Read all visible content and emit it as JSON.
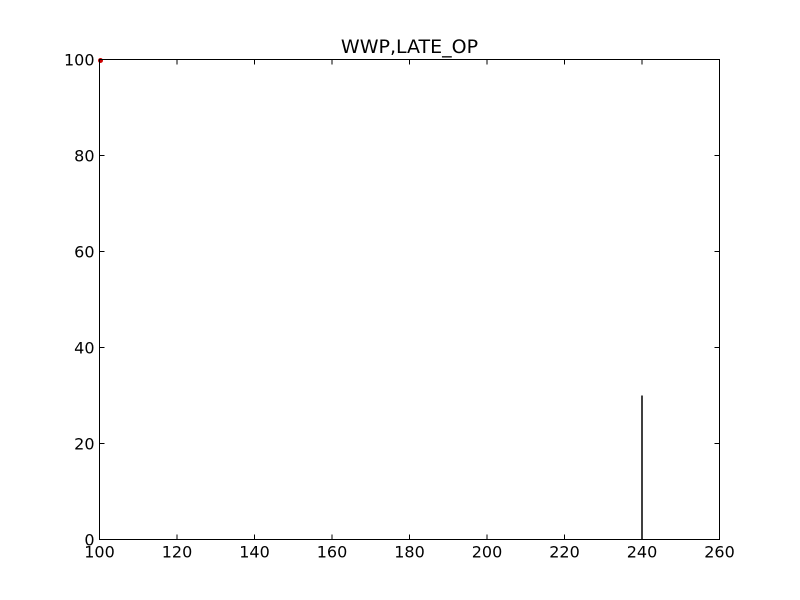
{
  "chart_data": {
    "type": "line",
    "title": "WWP,LATE_OP",
    "xlabel": "",
    "ylabel": "",
    "xlim": [
      100,
      260
    ],
    "ylim": [
      0,
      100
    ],
    "x_ticks": [
      100,
      120,
      140,
      160,
      180,
      200,
      220,
      240,
      260
    ],
    "y_ticks": [
      0,
      20,
      40,
      60,
      80,
      100
    ],
    "x_tick_labels": [
      "100",
      "120",
      "140",
      "160",
      "180",
      "200",
      "220",
      "240",
      "260"
    ],
    "y_tick_labels": [
      "0",
      "20",
      "40",
      "60",
      "80",
      "100"
    ],
    "grid": false,
    "series": [
      {
        "color": "#000000",
        "points": [
          {
            "x": 240,
            "y": 0
          },
          {
            "x": 240,
            "y": 30
          }
        ]
      }
    ],
    "markers": [
      {
        "x": 100,
        "y": 100,
        "color": "#cc0000"
      }
    ]
  }
}
